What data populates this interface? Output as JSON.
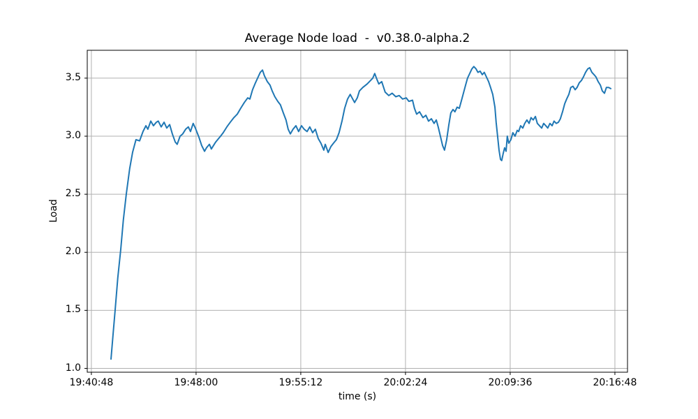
{
  "figure": {
    "title": "Average Node load  -  v0.38.0-alpha.2",
    "xlabel": "time (s)",
    "ylabel": "Load"
  },
  "chart_data": {
    "type": "line",
    "title": "Average Node load  -  v0.38.0-alpha.2",
    "xlabel": "time (s)",
    "ylabel": "Load",
    "grid": true,
    "legend": "none",
    "colors": {
      "line": "#1f77b4",
      "grid": "#b0b0b0",
      "spine": "#000000",
      "background": "#ffffff"
    },
    "x_origin_label": "19:40:48",
    "x_ticks": [
      {
        "t": 0,
        "label": "19:40:48"
      },
      {
        "t": 432,
        "label": "19:48:00"
      },
      {
        "t": 864,
        "label": "19:55:12"
      },
      {
        "t": 1296,
        "label": "20:02:24"
      },
      {
        "t": 1728,
        "label": "20:09:36"
      },
      {
        "t": 2160,
        "label": "20:16:48"
      }
    ],
    "y_ticks": [
      {
        "v": 1.0,
        "label": "1.0"
      },
      {
        "v": 1.5,
        "label": "1.5"
      },
      {
        "v": 2.0,
        "label": "2.0"
      },
      {
        "v": 2.5,
        "label": "2.5"
      },
      {
        "v": 3.0,
        "label": "3.0"
      },
      {
        "v": 3.5,
        "label": "3.5"
      }
    ],
    "xlim_seconds": [
      -17,
      2212
    ],
    "ylim": [
      0.967,
      3.74
    ],
    "series": [
      {
        "name": "average-node-load",
        "color": "#1f77b4",
        "points": [
          [
            81,
            1.08
          ],
          [
            89,
            1.28
          ],
          [
            98,
            1.5
          ],
          [
            109,
            1.78
          ],
          [
            121,
            2.02
          ],
          [
            132,
            2.28
          ],
          [
            144,
            2.5
          ],
          [
            158,
            2.72
          ],
          [
            170,
            2.86
          ],
          [
            184,
            2.97
          ],
          [
            199,
            2.96
          ],
          [
            213,
            3.04
          ],
          [
            225,
            3.09
          ],
          [
            233,
            3.06
          ],
          [
            245,
            3.13
          ],
          [
            256,
            3.09
          ],
          [
            268,
            3.12
          ],
          [
            276,
            3.13
          ],
          [
            288,
            3.08
          ],
          [
            300,
            3.12
          ],
          [
            311,
            3.07
          ],
          [
            323,
            3.1
          ],
          [
            334,
            3.02
          ],
          [
            346,
            2.95
          ],
          [
            354,
            2.93
          ],
          [
            366,
            3.0
          ],
          [
            377,
            3.02
          ],
          [
            389,
            3.06
          ],
          [
            400,
            3.08
          ],
          [
            409,
            3.04
          ],
          [
            420,
            3.11
          ],
          [
            429,
            3.07
          ],
          [
            444,
            2.99
          ],
          [
            455,
            2.92
          ],
          [
            467,
            2.87
          ],
          [
            475,
            2.9
          ],
          [
            487,
            2.93
          ],
          [
            495,
            2.89
          ],
          [
            504,
            2.92
          ],
          [
            513,
            2.95
          ],
          [
            521,
            2.97
          ],
          [
            533,
            3.0
          ],
          [
            544,
            3.03
          ],
          [
            559,
            3.08
          ],
          [
            573,
            3.12
          ],
          [
            588,
            3.16
          ],
          [
            602,
            3.19
          ],
          [
            616,
            3.24
          ],
          [
            631,
            3.29
          ],
          [
            645,
            3.33
          ],
          [
            654,
            3.32
          ],
          [
            665,
            3.4
          ],
          [
            677,
            3.46
          ],
          [
            688,
            3.51
          ],
          [
            697,
            3.55
          ],
          [
            706,
            3.57
          ],
          [
            714,
            3.52
          ],
          [
            726,
            3.47
          ],
          [
            737,
            3.44
          ],
          [
            746,
            3.39
          ],
          [
            757,
            3.34
          ],
          [
            769,
            3.3
          ],
          [
            780,
            3.27
          ],
          [
            792,
            3.2
          ],
          [
            803,
            3.14
          ],
          [
            812,
            3.06
          ],
          [
            821,
            3.02
          ],
          [
            832,
            3.06
          ],
          [
            844,
            3.09
          ],
          [
            855,
            3.04
          ],
          [
            867,
            3.09
          ],
          [
            878,
            3.06
          ],
          [
            890,
            3.04
          ],
          [
            901,
            3.08
          ],
          [
            913,
            3.03
          ],
          [
            924,
            3.06
          ],
          [
            936,
            2.98
          ],
          [
            947,
            2.94
          ],
          [
            959,
            2.88
          ],
          [
            965,
            2.93
          ],
          [
            977,
            2.86
          ],
          [
            988,
            2.91
          ],
          [
            999,
            2.94
          ],
          [
            1011,
            2.97
          ],
          [
            1022,
            3.03
          ],
          [
            1034,
            3.13
          ],
          [
            1045,
            3.24
          ],
          [
            1057,
            3.32
          ],
          [
            1068,
            3.36
          ],
          [
            1086,
            3.29
          ],
          [
            1097,
            3.33
          ],
          [
            1106,
            3.39
          ],
          [
            1120,
            3.42
          ],
          [
            1138,
            3.45
          ],
          [
            1152,
            3.48
          ],
          [
            1161,
            3.5
          ],
          [
            1169,
            3.54
          ],
          [
            1178,
            3.49
          ],
          [
            1186,
            3.45
          ],
          [
            1198,
            3.47
          ],
          [
            1212,
            3.38
          ],
          [
            1227,
            3.35
          ],
          [
            1241,
            3.37
          ],
          [
            1256,
            3.34
          ],
          [
            1270,
            3.35
          ],
          [
            1284,
            3.32
          ],
          [
            1299,
            3.33
          ],
          [
            1310,
            3.3
          ],
          [
            1325,
            3.31
          ],
          [
            1333,
            3.24
          ],
          [
            1342,
            3.19
          ],
          [
            1354,
            3.21
          ],
          [
            1368,
            3.16
          ],
          [
            1380,
            3.18
          ],
          [
            1391,
            3.13
          ],
          [
            1403,
            3.15
          ],
          [
            1414,
            3.11
          ],
          [
            1423,
            3.14
          ],
          [
            1431,
            3.08
          ],
          [
            1440,
            3.0
          ],
          [
            1449,
            2.92
          ],
          [
            1457,
            2.88
          ],
          [
            1466,
            2.97
          ],
          [
            1475,
            3.1
          ],
          [
            1483,
            3.2
          ],
          [
            1492,
            3.23
          ],
          [
            1500,
            3.21
          ],
          [
            1509,
            3.25
          ],
          [
            1518,
            3.24
          ],
          [
            1526,
            3.3
          ],
          [
            1535,
            3.37
          ],
          [
            1544,
            3.44
          ],
          [
            1552,
            3.5
          ],
          [
            1561,
            3.54
          ],
          [
            1570,
            3.58
          ],
          [
            1578,
            3.6
          ],
          [
            1587,
            3.58
          ],
          [
            1595,
            3.55
          ],
          [
            1604,
            3.56
          ],
          [
            1613,
            3.53
          ],
          [
            1621,
            3.55
          ],
          [
            1630,
            3.51
          ],
          [
            1639,
            3.47
          ],
          [
            1647,
            3.42
          ],
          [
            1656,
            3.36
          ],
          [
            1665,
            3.25
          ],
          [
            1670,
            3.12
          ],
          [
            1676,
            3.0
          ],
          [
            1682,
            2.88
          ],
          [
            1688,
            2.8
          ],
          [
            1693,
            2.79
          ],
          [
            1699,
            2.85
          ],
          [
            1705,
            2.9
          ],
          [
            1711,
            2.87
          ],
          [
            1716,
            3.0
          ],
          [
            1722,
            2.94
          ],
          [
            1731,
            2.97
          ],
          [
            1739,
            3.03
          ],
          [
            1748,
            3.0
          ],
          [
            1757,
            3.05
          ],
          [
            1763,
            3.04
          ],
          [
            1771,
            3.09
          ],
          [
            1780,
            3.07
          ],
          [
            1788,
            3.11
          ],
          [
            1797,
            3.14
          ],
          [
            1806,
            3.11
          ],
          [
            1814,
            3.16
          ],
          [
            1823,
            3.14
          ],
          [
            1832,
            3.17
          ],
          [
            1840,
            3.11
          ],
          [
            1849,
            3.09
          ],
          [
            1858,
            3.07
          ],
          [
            1866,
            3.11
          ],
          [
            1875,
            3.09
          ],
          [
            1883,
            3.07
          ],
          [
            1892,
            3.11
          ],
          [
            1901,
            3.09
          ],
          [
            1909,
            3.13
          ],
          [
            1918,
            3.11
          ],
          [
            1927,
            3.12
          ],
          [
            1935,
            3.15
          ],
          [
            1944,
            3.21
          ],
          [
            1953,
            3.28
          ],
          [
            1961,
            3.32
          ],
          [
            1970,
            3.36
          ],
          [
            1978,
            3.42
          ],
          [
            1987,
            3.43
          ],
          [
            1996,
            3.4
          ],
          [
            2004,
            3.42
          ],
          [
            2013,
            3.46
          ],
          [
            2022,
            3.48
          ],
          [
            2030,
            3.51
          ],
          [
            2039,
            3.55
          ],
          [
            2048,
            3.58
          ],
          [
            2056,
            3.59
          ],
          [
            2065,
            3.55
          ],
          [
            2074,
            3.53
          ],
          [
            2082,
            3.51
          ],
          [
            2091,
            3.47
          ],
          [
            2100,
            3.44
          ],
          [
            2108,
            3.39
          ],
          [
            2117,
            3.37
          ],
          [
            2125,
            3.42
          ],
          [
            2134,
            3.42
          ],
          [
            2143,
            3.41
          ]
        ]
      }
    ]
  }
}
